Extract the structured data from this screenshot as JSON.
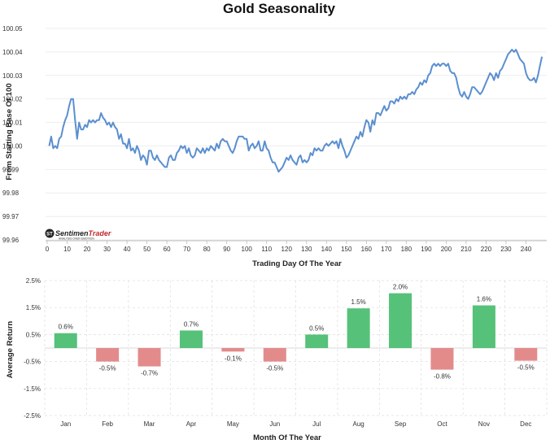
{
  "chart_data": [
    {
      "type": "line",
      "title": "Gold Seasonality",
      "xlabel": "Trading Day Of The Year",
      "ylabel": "From Starting Base Of 100",
      "xlim": [
        0,
        250
      ],
      "ylim": [
        99.96,
        100.05
      ],
      "x_ticks": [
        "0",
        "10",
        "20",
        "30",
        "40",
        "50",
        "60",
        "70",
        "80",
        "90",
        "100",
        "110",
        "120",
        "130",
        "140",
        "150",
        "160",
        "170",
        "180",
        "190",
        "200",
        "210",
        "220",
        "230",
        "240"
      ],
      "y_ticks": [
        "100.05",
        "100.04",
        "100.03",
        "100.02",
        "100.01",
        "100.00",
        "99.99",
        "99.98",
        "99.97",
        "99.96"
      ],
      "series": [
        {
          "name": "Gold",
          "color": "#5b8fd0",
          "points": [
            [
              1,
              100.0
            ],
            [
              2,
              100.004
            ],
            [
              3,
              99.999
            ],
            [
              4,
              100.0
            ],
            [
              5,
              99.999
            ],
            [
              6,
              100.003
            ],
            [
              7,
              100.004
            ],
            [
              8,
              100.008
            ],
            [
              9,
              100.011
            ],
            [
              10,
              100.013
            ],
            [
              11,
              100.017
            ],
            [
              12,
              100.02
            ],
            [
              13,
              100.02
            ],
            [
              14,
              100.011
            ],
            [
              15,
              100.003
            ],
            [
              16,
              100.01
            ],
            [
              17,
              100.007
            ],
            [
              18,
              100.007
            ],
            [
              19,
              100.009
            ],
            [
              20,
              100.008
            ],
            [
              21,
              100.011
            ],
            [
              22,
              100.01
            ],
            [
              23,
              100.011
            ],
            [
              24,
              100.01
            ],
            [
              25,
              100.011
            ],
            [
              26,
              100.011
            ],
            [
              27,
              100.014
            ],
            [
              28,
              100.012
            ],
            [
              29,
              100.011
            ],
            [
              30,
              100.009
            ],
            [
              31,
              100.01
            ],
            [
              32,
              100.008
            ],
            [
              33,
              100.01
            ],
            [
              34,
              100.008
            ],
            [
              35,
              100.007
            ],
            [
              36,
              100.003
            ],
            [
              37,
              100.005
            ],
            [
              38,
              100.001
            ],
            [
              39,
              100.001
            ],
            [
              40,
              99.999
            ],
            [
              41,
              100.003
            ],
            [
              42,
              99.998
            ],
            [
              43,
              99.999
            ],
            [
              44,
              99.997
            ],
            [
              45,
              100.0
            ],
            [
              46,
              99.998
            ],
            [
              47,
              99.994
            ],
            [
              48,
              99.996
            ],
            [
              49,
              99.995
            ],
            [
              50,
              99.992
            ],
            [
              51,
              99.998
            ],
            [
              52,
              99.998
            ],
            [
              53,
              99.995
            ],
            [
              54,
              99.994
            ],
            [
              55,
              99.996
            ],
            [
              56,
              99.994
            ],
            [
              57,
              99.993
            ],
            [
              58,
              99.992
            ],
            [
              59,
              99.991
            ],
            [
              60,
              99.991
            ],
            [
              61,
              99.995
            ],
            [
              62,
              99.996
            ],
            [
              63,
              99.994
            ],
            [
              64,
              99.994
            ],
            [
              65,
              99.997
            ],
            [
              66,
              99.998
            ],
            [
              67,
              100.0
            ],
            [
              68,
              99.999
            ],
            [
              69,
              100.0
            ],
            [
              70,
              99.997
            ],
            [
              71,
              99.999
            ],
            [
              72,
              99.996
            ],
            [
              73,
              99.995
            ],
            [
              74,
              99.996
            ],
            [
              75,
              99.999
            ],
            [
              76,
              99.998
            ],
            [
              77,
              99.997
            ],
            [
              78,
              99.999
            ],
            [
              79,
              99.997
            ],
            [
              80,
              99.999
            ],
            [
              81,
              99.998
            ],
            [
              82,
              100.0
            ],
            [
              83,
              99.999
            ],
            [
              84,
              99.998
            ],
            [
              85,
              100.001
            ],
            [
              86,
              99.999
            ],
            [
              87,
              100.002
            ],
            [
              88,
              100.003
            ],
            [
              89,
              100.002
            ],
            [
              90,
              100.002
            ],
            [
              91,
              100.0
            ],
            [
              92,
              99.998
            ],
            [
              93,
              99.997
            ],
            [
              94,
              99.999
            ],
            [
              95,
              100.002
            ],
            [
              96,
              100.004
            ],
            [
              97,
              100.004
            ],
            [
              98,
              100.004
            ],
            [
              99,
              100.003
            ],
            [
              100,
              100.003
            ],
            [
              101,
              99.998
            ],
            [
              102,
              100.0
            ],
            [
              103,
              100.001
            ],
            [
              104,
              99.999
            ],
            [
              105,
              100.0
            ],
            [
              106,
              100.002
            ],
            [
              107,
              99.998
            ],
            [
              108,
              99.998
            ],
            [
              109,
              100.002
            ],
            [
              110,
              99.999
            ],
            [
              111,
              99.998
            ],
            [
              112,
              99.995
            ],
            [
              113,
              99.993
            ],
            [
              114,
              99.993
            ],
            [
              115,
              99.991
            ],
            [
              116,
              99.989
            ],
            [
              117,
              99.99
            ],
            [
              118,
              99.991
            ],
            [
              119,
              99.993
            ],
            [
              120,
              99.995
            ],
            [
              121,
              99.994
            ],
            [
              122,
              99.996
            ],
            [
              123,
              99.994
            ],
            [
              124,
              99.993
            ],
            [
              125,
              99.992
            ],
            [
              126,
              99.995
            ],
            [
              127,
              99.996
            ],
            [
              128,
              99.993
            ],
            [
              129,
              99.994
            ],
            [
              130,
              99.993
            ],
            [
              131,
              99.994
            ],
            [
              132,
              99.997
            ],
            [
              133,
              99.996
            ],
            [
              134,
              99.999
            ],
            [
              135,
              99.998
            ],
            [
              136,
              99.999
            ],
            [
              137,
              99.998
            ],
            [
              138,
              99.998
            ],
            [
              139,
              100.0
            ],
            [
              140,
              100.001
            ],
            [
              141,
              100.0
            ],
            [
              142,
              100.001
            ],
            [
              143,
              100.002
            ],
            [
              144,
              100.001
            ],
            [
              145,
              100.002
            ],
            [
              146,
              99.999
            ],
            [
              147,
              100.003
            ],
            [
              148,
              100.0
            ],
            [
              149,
              99.998
            ],
            [
              150,
              99.995
            ],
            [
              151,
              99.996
            ],
            [
              152,
              99.998
            ],
            [
              153,
              100.0
            ],
            [
              154,
              100.002
            ],
            [
              155,
              100.004
            ],
            [
              156,
              100.003
            ],
            [
              157,
              100.006
            ],
            [
              158,
              100.004
            ],
            [
              159,
              100.008
            ],
            [
              160,
              100.011
            ],
            [
              161,
              100.01
            ],
            [
              162,
              100.006
            ],
            [
              163,
              100.011
            ],
            [
              164,
              100.009
            ],
            [
              165,
              100.014
            ],
            [
              166,
              100.014
            ],
            [
              167,
              100.013
            ],
            [
              168,
              100.015
            ],
            [
              169,
              100.017
            ],
            [
              170,
              100.015
            ],
            [
              171,
              100.016
            ],
            [
              172,
              100.019
            ],
            [
              173,
              100.019
            ],
            [
              174,
              100.018
            ],
            [
              175,
              100.02
            ],
            [
              176,
              100.019
            ],
            [
              177,
              100.021
            ],
            [
              178,
              100.02
            ],
            [
              179,
              100.021
            ],
            [
              180,
              100.02
            ],
            [
              181,
              100.022
            ],
            [
              182,
              100.022
            ],
            [
              183,
              100.023
            ],
            [
              184,
              100.022
            ],
            [
              185,
              100.024
            ],
            [
              186,
              100.025
            ],
            [
              187,
              100.027
            ],
            [
              188,
              100.026
            ],
            [
              189,
              100.028
            ],
            [
              190,
              100.027
            ],
            [
              191,
              100.03
            ],
            [
              192,
              100.031
            ],
            [
              193,
              100.034
            ],
            [
              194,
              100.035
            ],
            [
              195,
              100.034
            ],
            [
              196,
              100.035
            ],
            [
              197,
              100.034
            ],
            [
              198,
              100.035
            ],
            [
              199,
              100.035
            ],
            [
              200,
              100.034
            ],
            [
              201,
              100.035
            ],
            [
              202,
              100.032
            ],
            [
              203,
              100.031
            ],
            [
              204,
              100.031
            ],
            [
              205,
              100.029
            ],
            [
              206,
              100.025
            ],
            [
              207,
              100.022
            ],
            [
              208,
              100.021
            ],
            [
              209,
              100.023
            ],
            [
              210,
              100.021
            ],
            [
              211,
              100.02
            ],
            [
              212,
              100.022
            ],
            [
              213,
              100.025
            ],
            [
              214,
              100.025
            ],
            [
              215,
              100.024
            ],
            [
              216,
              100.023
            ],
            [
              217,
              100.022
            ],
            [
              218,
              100.023
            ],
            [
              219,
              100.025
            ],
            [
              220,
              100.027
            ],
            [
              221,
              100.029
            ],
            [
              222,
              100.031
            ],
            [
              223,
              100.03
            ],
            [
              224,
              100.028
            ],
            [
              225,
              100.031
            ],
            [
              226,
              100.029
            ],
            [
              227,
              100.032
            ],
            [
              228,
              100.033
            ],
            [
              229,
              100.035
            ],
            [
              230,
              100.037
            ],
            [
              231,
              100.039
            ],
            [
              232,
              100.04
            ],
            [
              233,
              100.041
            ],
            [
              234,
              100.04
            ],
            [
              235,
              100.041
            ],
            [
              236,
              100.039
            ],
            [
              237,
              100.037
            ],
            [
              238,
              100.036
            ],
            [
              239,
              100.035
            ],
            [
              240,
              100.031
            ],
            [
              241,
              100.029
            ],
            [
              242,
              100.028
            ],
            [
              243,
              100.028
            ],
            [
              244,
              100.029
            ],
            [
              245,
              100.027
            ],
            [
              246,
              100.03
            ],
            [
              247,
              100.034
            ],
            [
              248,
              100.038
            ]
          ]
        }
      ]
    },
    {
      "type": "bar",
      "xlabel": "Month Of The Year",
      "ylabel": "Average Return",
      "ylim": [
        -2.5,
        2.5
      ],
      "y_ticks": [
        {
          "value": 2.5,
          "label": "2.5%"
        },
        {
          "value": 1.5,
          "label": "1.5%"
        },
        {
          "value": 0.5,
          "label": "0.5%"
        },
        {
          "value": -0.5,
          "label": "-0.5%"
        },
        {
          "value": -1.5,
          "label": "-1.5%"
        },
        {
          "value": -2.5,
          "label": "-2.5%"
        }
      ],
      "categories": [
        "Jan",
        "Feb",
        "Mar",
        "Apr",
        "May",
        "Jun",
        "Jul",
        "Aug",
        "Sep",
        "Oct",
        "Nov",
        "Dec"
      ],
      "values": [
        0.55,
        -0.5,
        -0.68,
        0.65,
        -0.13,
        -0.5,
        0.5,
        1.47,
        2.03,
        -0.8,
        1.58,
        -0.47
      ],
      "value_labels": [
        "0.6%",
        "-0.5%",
        "-0.7%",
        "0.7%",
        "-0.1%",
        "-0.5%",
        "0.5%",
        "1.5%",
        "2.0%",
        "-0.8%",
        "1.6%",
        "-0.5%"
      ],
      "positive_color": "#56c178",
      "negative_color": "#e38b8b"
    }
  ],
  "logo": {
    "name": "SentimenTrader",
    "name_part1": "Sentimen",
    "name_part2": "Trader",
    "tagline": "ANALYSIS OVER EMOTION",
    "badge": "ST"
  }
}
